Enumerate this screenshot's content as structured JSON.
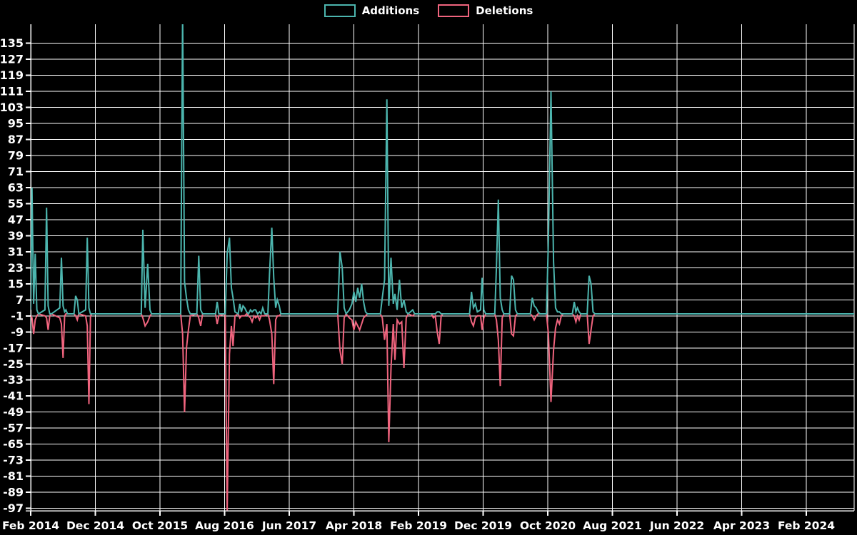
{
  "chart_data": {
    "type": "line",
    "title": "",
    "xlabel": "",
    "ylabel": "",
    "x_unit": "months since Feb 2014 (weekly samples)",
    "x_axis": {
      "tick_labels": [
        "Feb 2014",
        "Dec 2014",
        "Oct 2015",
        "Aug 2016",
        "Jun 2017",
        "Apr 2018",
        "Feb 2019",
        "Dec 2019",
        "Oct 2020",
        "Aug 2021",
        "Jun 2022",
        "Apr 2023",
        "Feb 2024"
      ],
      "tick_interval_months": 10
    },
    "y_axis": {
      "ticks": [
        135,
        127,
        119,
        111,
        103,
        95,
        87,
        79,
        71,
        63,
        55,
        47,
        39,
        31,
        23,
        15,
        7,
        -1,
        -9,
        -17,
        -25,
        -33,
        -41,
        -49,
        -57,
        -65,
        -73,
        -81,
        -89,
        -97
      ],
      "min": -98,
      "max": 144
    },
    "grid": true,
    "legend_position": "top-center",
    "background_color": "#000000",
    "grid_color": "#ffffff",
    "text_color": "#ffffff",
    "series": [
      {
        "name": "Additions",
        "color": "#4cb5ae",
        "points": [
          [
            0,
            2
          ],
          [
            0.2,
            63
          ],
          [
            0.45,
            5
          ],
          [
            0.7,
            30
          ],
          [
            0.95,
            2
          ],
          [
            1.2,
            0
          ],
          [
            2.2,
            2
          ],
          [
            2.45,
            53
          ],
          [
            2.7,
            4
          ],
          [
            2.95,
            0
          ],
          [
            3.2,
            0
          ],
          [
            4.5,
            3
          ],
          [
            4.75,
            28
          ],
          [
            5.0,
            4
          ],
          [
            5.25,
            1
          ],
          [
            5.45,
            2
          ],
          [
            5.7,
            0
          ],
          [
            6.7,
            0
          ],
          [
            6.95,
            9
          ],
          [
            7.2,
            7
          ],
          [
            7.45,
            0
          ],
          [
            8.5,
            2
          ],
          [
            8.75,
            38
          ],
          [
            9.0,
            3
          ],
          [
            9.25,
            0
          ],
          [
            9.5,
            0
          ],
          [
            17.1,
            0
          ],
          [
            17.35,
            42
          ],
          [
            17.7,
            3
          ],
          [
            18.1,
            25
          ],
          [
            18.45,
            2
          ],
          [
            18.7,
            0
          ],
          [
            23.2,
            0
          ],
          [
            23.5,
            150
          ],
          [
            23.8,
            16
          ],
          [
            24.1,
            8
          ],
          [
            24.4,
            2
          ],
          [
            24.7,
            0
          ],
          [
            25.7,
            0
          ],
          [
            26.0,
            29
          ],
          [
            26.3,
            2
          ],
          [
            26.6,
            0
          ],
          [
            28.6,
            0
          ],
          [
            28.85,
            6
          ],
          [
            29.1,
            0
          ],
          [
            30.1,
            0
          ],
          [
            30.4,
            30
          ],
          [
            30.75,
            38
          ],
          [
            31.05,
            13
          ],
          [
            31.3,
            8
          ],
          [
            31.6,
            1
          ],
          [
            32.1,
            0
          ],
          [
            32.35,
            5
          ],
          [
            32.6,
            1
          ],
          [
            32.85,
            4
          ],
          [
            33.1,
            3
          ],
          [
            33.4,
            1
          ],
          [
            33.7,
            0
          ],
          [
            34.0,
            2
          ],
          [
            34.25,
            1
          ],
          [
            34.55,
            2
          ],
          [
            34.8,
            2
          ],
          [
            35.1,
            0
          ],
          [
            35.4,
            1
          ],
          [
            35.65,
            0
          ],
          [
            35.9,
            3
          ],
          [
            36.2,
            0
          ],
          [
            36.7,
            0
          ],
          [
            36.95,
            20
          ],
          [
            37.3,
            43
          ],
          [
            37.6,
            18
          ],
          [
            37.9,
            3
          ],
          [
            38.15,
            7
          ],
          [
            38.45,
            4
          ],
          [
            38.7,
            0
          ],
          [
            47.5,
            0
          ],
          [
            47.85,
            31
          ],
          [
            48.2,
            23
          ],
          [
            48.5,
            3
          ],
          [
            48.8,
            0
          ],
          [
            49.3,
            2
          ],
          [
            49.7,
            5
          ],
          [
            50.0,
            11
          ],
          [
            50.3,
            6
          ],
          [
            50.6,
            13
          ],
          [
            50.9,
            8
          ],
          [
            51.2,
            15
          ],
          [
            51.5,
            6
          ],
          [
            51.8,
            1
          ],
          [
            52.1,
            0
          ],
          [
            54.1,
            0
          ],
          [
            54.4,
            8
          ],
          [
            54.75,
            17
          ],
          [
            55.1,
            107
          ],
          [
            55.4,
            4
          ],
          [
            55.75,
            28
          ],
          [
            56.1,
            5
          ],
          [
            56.35,
            10
          ],
          [
            56.7,
            2
          ],
          [
            57.05,
            17
          ],
          [
            57.4,
            3
          ],
          [
            57.75,
            7
          ],
          [
            58.1,
            1
          ],
          [
            58.4,
            0
          ],
          [
            59.1,
            2
          ],
          [
            59.4,
            0
          ],
          [
            62.0,
            0
          ],
          [
            62.3,
            0
          ],
          [
            62.6,
            0
          ],
          [
            62.9,
            1
          ],
          [
            63.2,
            1
          ],
          [
            63.5,
            0
          ],
          [
            63.8,
            0
          ],
          [
            67.9,
            0
          ],
          [
            68.2,
            11
          ],
          [
            68.5,
            3
          ],
          [
            68.8,
            5
          ],
          [
            69.1,
            1
          ],
          [
            69.6,
            2
          ],
          [
            69.85,
            18
          ],
          [
            70.1,
            2
          ],
          [
            70.4,
            0
          ],
          [
            71.8,
            0
          ],
          [
            72.05,
            23
          ],
          [
            72.35,
            57
          ],
          [
            72.65,
            8
          ],
          [
            72.95,
            2
          ],
          [
            73.2,
            0
          ],
          [
            74.1,
            0
          ],
          [
            74.4,
            19
          ],
          [
            74.7,
            17
          ],
          [
            75.0,
            2
          ],
          [
            75.3,
            0
          ],
          [
            77.3,
            0
          ],
          [
            77.6,
            8
          ],
          [
            77.9,
            4
          ],
          [
            78.2,
            3
          ],
          [
            78.5,
            1
          ],
          [
            78.8,
            0
          ],
          [
            79.8,
            0
          ],
          [
            80.1,
            37
          ],
          [
            80.5,
            111
          ],
          [
            80.9,
            26
          ],
          [
            81.2,
            3
          ],
          [
            81.5,
            1
          ],
          [
            81.8,
            1
          ],
          [
            82.1,
            0
          ],
          [
            82.4,
            0
          ],
          [
            83.8,
            0
          ],
          [
            84.1,
            6
          ],
          [
            84.35,
            1
          ],
          [
            84.6,
            3
          ],
          [
            84.85,
            1
          ],
          [
            85.1,
            0
          ],
          [
            86.1,
            0
          ],
          [
            86.4,
            19
          ],
          [
            86.7,
            15
          ],
          [
            87.0,
            1
          ],
          [
            87.3,
            0
          ],
          [
            127.8,
            0
          ]
        ]
      },
      {
        "name": "Deletions",
        "color": "#f0647e",
        "points": [
          [
            0,
            -1
          ],
          [
            0.2,
            -2
          ],
          [
            0.45,
            -10
          ],
          [
            0.7,
            -3
          ],
          [
            0.95,
            -1
          ],
          [
            1.2,
            0
          ],
          [
            2.2,
            -1
          ],
          [
            2.45,
            -2
          ],
          [
            2.7,
            -8
          ],
          [
            2.95,
            -1
          ],
          [
            3.2,
            0
          ],
          [
            4.5,
            -2
          ],
          [
            4.75,
            -5
          ],
          [
            5.0,
            -22
          ],
          [
            5.25,
            -1
          ],
          [
            5.45,
            0
          ],
          [
            5.7,
            0
          ],
          [
            6.7,
            0
          ],
          [
            6.95,
            -1
          ],
          [
            7.2,
            -3
          ],
          [
            7.45,
            0
          ],
          [
            8.5,
            -1
          ],
          [
            8.75,
            -6
          ],
          [
            9.0,
            -45
          ],
          [
            9.25,
            -1
          ],
          [
            9.5,
            0
          ],
          [
            17.1,
            0
          ],
          [
            17.35,
            -2
          ],
          [
            17.7,
            -6
          ],
          [
            18.1,
            -4
          ],
          [
            18.45,
            -1
          ],
          [
            18.7,
            0
          ],
          [
            23.2,
            0
          ],
          [
            23.5,
            -10
          ],
          [
            23.8,
            -49
          ],
          [
            24.1,
            -17
          ],
          [
            24.4,
            -8
          ],
          [
            24.7,
            -1
          ],
          [
            25.7,
            0
          ],
          [
            26.0,
            -2
          ],
          [
            26.3,
            -6
          ],
          [
            26.6,
            0
          ],
          [
            28.6,
            0
          ],
          [
            28.85,
            -5
          ],
          [
            29.1,
            -1
          ],
          [
            30.1,
            0
          ],
          [
            30.4,
            -98
          ],
          [
            30.75,
            -20
          ],
          [
            31.05,
            -6
          ],
          [
            31.3,
            -16
          ],
          [
            31.6,
            -1
          ],
          [
            32.1,
            0
          ],
          [
            32.35,
            -2
          ],
          [
            32.6,
            -1
          ],
          [
            32.85,
            -1
          ],
          [
            33.1,
            -1
          ],
          [
            33.4,
            0
          ],
          [
            33.7,
            -1
          ],
          [
            34.0,
            -2
          ],
          [
            34.25,
            -4
          ],
          [
            34.55,
            -1
          ],
          [
            34.8,
            -2
          ],
          [
            35.1,
            -1
          ],
          [
            35.4,
            -3
          ],
          [
            35.65,
            -1
          ],
          [
            35.9,
            -1
          ],
          [
            36.2,
            -1
          ],
          [
            36.7,
            0
          ],
          [
            36.95,
            -3
          ],
          [
            37.3,
            -10
          ],
          [
            37.6,
            -35
          ],
          [
            37.9,
            -3
          ],
          [
            38.15,
            -1
          ],
          [
            38.45,
            -1
          ],
          [
            38.7,
            0
          ],
          [
            47.5,
            0
          ],
          [
            47.85,
            -18
          ],
          [
            48.2,
            -25
          ],
          [
            48.5,
            -2
          ],
          [
            48.8,
            0
          ],
          [
            49.3,
            -2
          ],
          [
            49.7,
            -3
          ],
          [
            50.0,
            -8
          ],
          [
            50.3,
            -4
          ],
          [
            50.6,
            -6
          ],
          [
            50.9,
            -8
          ],
          [
            51.2,
            -5
          ],
          [
            51.5,
            -2
          ],
          [
            51.8,
            -1
          ],
          [
            52.1,
            0
          ],
          [
            54.1,
            0
          ],
          [
            54.4,
            -2
          ],
          [
            54.75,
            -13
          ],
          [
            55.1,
            -5
          ],
          [
            55.4,
            -64
          ],
          [
            55.75,
            -27
          ],
          [
            56.1,
            -5
          ],
          [
            56.35,
            -23
          ],
          [
            56.7,
            -3
          ],
          [
            57.05,
            -5
          ],
          [
            57.4,
            -4
          ],
          [
            57.75,
            -27
          ],
          [
            58.1,
            -2
          ],
          [
            58.4,
            0
          ],
          [
            59.1,
            -1
          ],
          [
            59.4,
            0
          ],
          [
            62.0,
            0
          ],
          [
            62.3,
            -2
          ],
          [
            62.6,
            -1
          ],
          [
            62.9,
            -9
          ],
          [
            63.2,
            -15
          ],
          [
            63.5,
            -1
          ],
          [
            63.8,
            0
          ],
          [
            67.9,
            0
          ],
          [
            68.2,
            -4
          ],
          [
            68.5,
            -6
          ],
          [
            68.8,
            -2
          ],
          [
            69.1,
            -1
          ],
          [
            69.6,
            -1
          ],
          [
            69.85,
            -8
          ],
          [
            70.1,
            -2
          ],
          [
            70.4,
            0
          ],
          [
            71.8,
            0
          ],
          [
            72.05,
            -3
          ],
          [
            72.35,
            -13
          ],
          [
            72.65,
            -36
          ],
          [
            72.95,
            -2
          ],
          [
            73.2,
            0
          ],
          [
            74.1,
            0
          ],
          [
            74.4,
            -10
          ],
          [
            74.7,
            -11
          ],
          [
            75.0,
            -1
          ],
          [
            75.3,
            0
          ],
          [
            77.3,
            0
          ],
          [
            77.6,
            -1
          ],
          [
            77.9,
            -3
          ],
          [
            78.2,
            -1
          ],
          [
            78.5,
            0
          ],
          [
            78.8,
            0
          ],
          [
            79.8,
            0
          ],
          [
            80.1,
            -10
          ],
          [
            80.5,
            -44
          ],
          [
            80.9,
            -18
          ],
          [
            81.2,
            -7
          ],
          [
            81.5,
            -3
          ],
          [
            81.8,
            -5
          ],
          [
            82.1,
            -1
          ],
          [
            82.4,
            0
          ],
          [
            83.8,
            0
          ],
          [
            84.1,
            -1
          ],
          [
            84.35,
            -4
          ],
          [
            84.6,
            -1
          ],
          [
            84.85,
            -3
          ],
          [
            85.1,
            0
          ],
          [
            86.1,
            0
          ],
          [
            86.4,
            -15
          ],
          [
            86.7,
            -8
          ],
          [
            87.0,
            -1
          ],
          [
            87.3,
            0
          ],
          [
            127.8,
            0
          ]
        ]
      }
    ]
  }
}
